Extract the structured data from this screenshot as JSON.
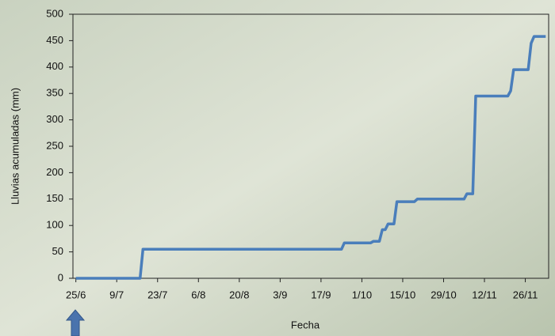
{
  "chart_data": {
    "type": "line",
    "x_label": "Fecha",
    "y_label": "Lluvias acumuladas (mm)",
    "x": [
      "25/6",
      "17/7",
      "18/7",
      "24/9",
      "25/9",
      "4/10",
      "5/10",
      "7/10",
      "8/10",
      "9/10",
      "10/10",
      "12/10",
      "13/10",
      "19/10",
      "20/10",
      "5/11",
      "6/11",
      "8/11",
      "9/11",
      "20/11",
      "21/11",
      "22/11",
      "27/11",
      "28/11",
      "29/11",
      "3/12"
    ],
    "series": [
      {
        "color": "#4a7ebb",
        "values": [
          0,
          0,
          55,
          55,
          67,
          67,
          70,
          70,
          92,
          92,
          103,
          103,
          145,
          145,
          150,
          150,
          160,
          160,
          345,
          345,
          355,
          395,
          395,
          445,
          458,
          458
        ]
      }
    ],
    "xlim": [
      "24/6",
      "4/12"
    ],
    "xticks": [
      "25/6",
      "9/7",
      "23/7",
      "6/8",
      "20/8",
      "3/9",
      "17/9",
      "1/10",
      "15/10",
      "29/10",
      "12/11",
      "26/11"
    ],
    "ylim": [
      0,
      500
    ],
    "yticks": [
      0,
      50,
      100,
      150,
      200,
      250,
      300,
      350,
      400,
      450,
      500
    ],
    "grid": false
  }
}
